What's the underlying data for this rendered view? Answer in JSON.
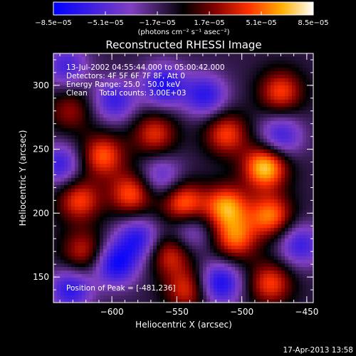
{
  "chart_data": {
    "type": "heatmap",
    "title": "Reconstructed RHESSI Image",
    "xlabel": "Heliocentric X (arcsec)",
    "ylabel": "Heliocentric Y (arcsec)",
    "xlim": [
      -645,
      -445
    ],
    "ylim": [
      130,
      325
    ],
    "x_ticks": [
      -600,
      -550,
      -500,
      -450
    ],
    "y_ticks": [
      150,
      200,
      250,
      300
    ],
    "x_tick_labels": [
      "−600",
      "−550",
      "−500",
      "−450"
    ],
    "y_tick_labels": [
      "150",
      "200",
      "250",
      "300"
    ],
    "colorbar": {
      "min": -8.5e-05,
      "max": 8.5e-05,
      "tick_labels": [
        "−8.5e−05",
        "−5.1e−05",
        "−1.7e−05",
        "1.7e−05",
        "5.1e−05",
        "8.5e−05"
      ],
      "tick_values": [
        -8.5e-05,
        -5.1e-05,
        -1.7e-05,
        1.7e-05,
        5.1e-05,
        8.5e-05
      ],
      "units_label": "(photons cm⁻² s⁻¹ asec⁻²)"
    },
    "info_lines": [
      "13-Jul-2002 04:55:44.000 to 05:00:42.000",
      "Detectors: 4F 5F 6F 7F 8F, Att 0",
      "Energy Range: 25.0 - 50.0 keV",
      "Clean     Total counts: 3.00E+03"
    ],
    "peak_label": "Position of Peak = [-481,236]",
    "colors": {
      "negative": "#0000ff",
      "zero": "#000000",
      "low_positive": "#800000",
      "mid_positive": "#ff3000",
      "high_positive": "#ffb000",
      "max": "#ffffff"
    },
    "sources": [
      {
        "x": -482,
        "y": 236,
        "amp": 8.5e-05
      },
      {
        "x": -512,
        "y": 205,
        "amp": 7.2e-05
      },
      {
        "x": -545,
        "y": 208,
        "amp": 6.5e-05
      },
      {
        "x": -505,
        "y": 180,
        "amp": 6e-05
      },
      {
        "x": -478,
        "y": 198,
        "amp": 6.5e-05
      },
      {
        "x": -585,
        "y": 215,
        "amp": 6e-05
      },
      {
        "x": -607,
        "y": 245,
        "amp": 6e-05
      },
      {
        "x": -625,
        "y": 210,
        "amp": 5.5e-05
      },
      {
        "x": -567,
        "y": 262,
        "amp": 5e-05
      },
      {
        "x": -512,
        "y": 262,
        "amp": 5.5e-05
      },
      {
        "x": -470,
        "y": 295,
        "amp": 5.5e-05
      },
      {
        "x": -555,
        "y": 168,
        "amp": 5e-05
      },
      {
        "x": -478,
        "y": 145,
        "amp": 5.5e-05
      },
      {
        "x": -622,
        "y": 170,
        "amp": 4.5e-05
      },
      {
        "x": -542,
        "y": 140,
        "amp": 5e-05
      },
      {
        "x": -632,
        "y": 280,
        "amp": 3.5e-05
      },
      {
        "x": -597,
        "y": 160,
        "amp": -6.5e-05
      },
      {
        "x": -580,
        "y": 180,
        "amp": -5.5e-05
      },
      {
        "x": -517,
        "y": 145,
        "amp": -6.5e-05
      },
      {
        "x": -598,
        "y": 288,
        "amp": -5e-05
      },
      {
        "x": -560,
        "y": 300,
        "amp": -6e-05
      },
      {
        "x": -528,
        "y": 292,
        "amp": -5.5e-05
      },
      {
        "x": -470,
        "y": 260,
        "amp": -5e-05
      },
      {
        "x": -640,
        "y": 238,
        "amp": -5e-05
      },
      {
        "x": -632,
        "y": 140,
        "amp": -5.5e-05
      },
      {
        "x": -562,
        "y": 228,
        "amp": -4e-05
      },
      {
        "x": -455,
        "y": 175,
        "amp": -5e-05
      },
      {
        "x": -540,
        "y": 185,
        "amp": -3.5e-05
      },
      {
        "x": -635,
        "y": 315,
        "amp": -4.5e-05
      }
    ]
  },
  "footer": {
    "date": "17-Apr-2013 13:58"
  }
}
